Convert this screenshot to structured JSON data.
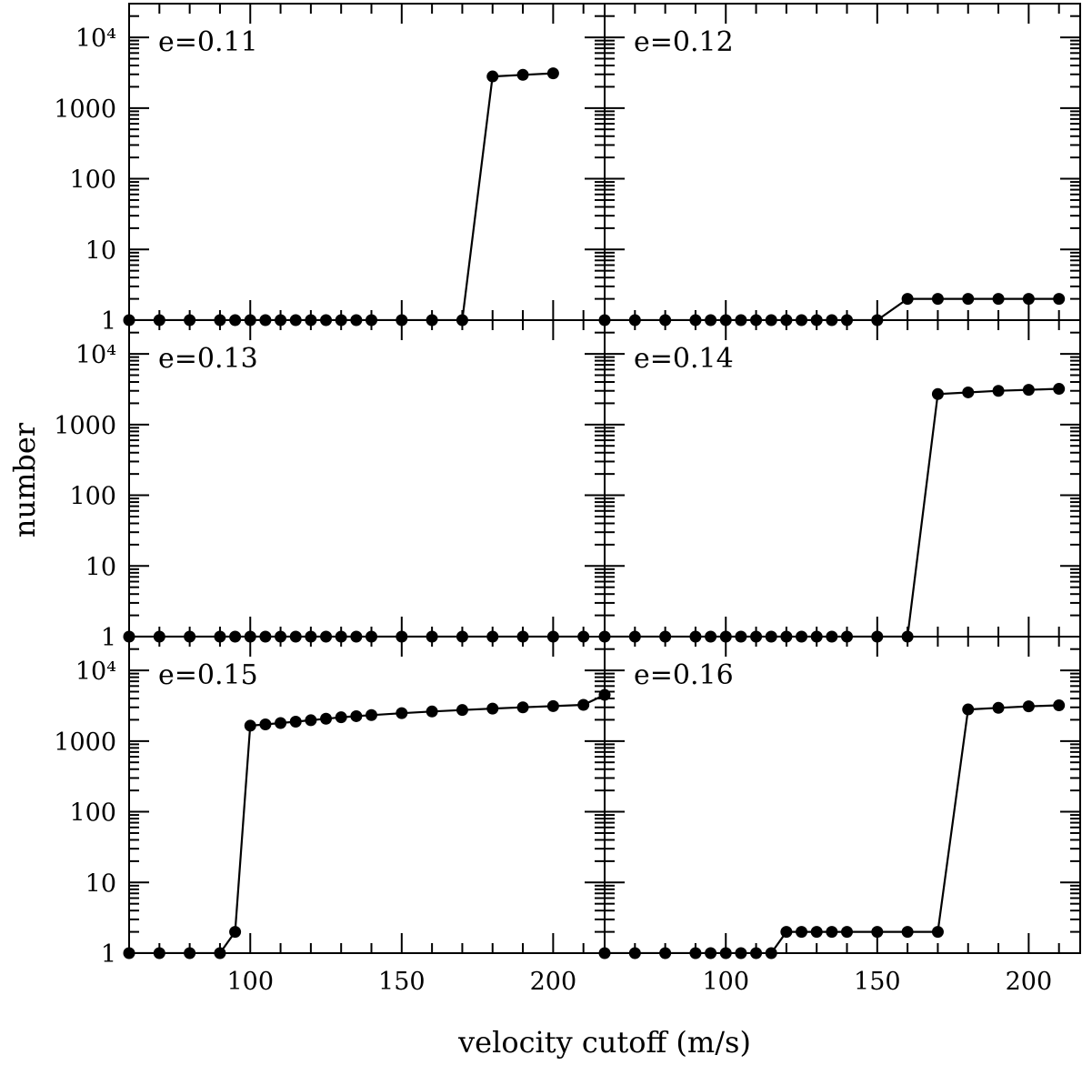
{
  "chart_data": {
    "type": "line",
    "layout": "3x2 panel grid, shared axes",
    "xlabel": "velocity cutoff (m/s)",
    "ylabel": "number",
    "xlim": [
      60,
      217
    ],
    "ylim": [
      1,
      30000
    ],
    "yscale": "log",
    "x_tick_labels": [
      "100",
      "150",
      "200"
    ],
    "x_tick_values": [
      100,
      150,
      200
    ],
    "y_tick_labels": [
      "1",
      "10",
      "100",
      "1000",
      "10⁴"
    ],
    "y_tick_values": [
      1,
      10,
      100,
      1000,
      10000
    ],
    "grid": false,
    "legend": "none",
    "marker": "filled circle",
    "line_color": "#000000",
    "panels": [
      {
        "label": "e=0.11",
        "x": [
          60,
          70,
          80,
          90,
          95,
          100,
          105,
          110,
          115,
          120,
          125,
          130,
          135,
          140,
          150,
          160,
          170,
          180,
          190,
          200
        ],
        "y": [
          1,
          1,
          1,
          1,
          1,
          1,
          1,
          1,
          1,
          1,
          1,
          1,
          1,
          1,
          1,
          1,
          1,
          2800,
          2950,
          3100
        ]
      },
      {
        "label": "e=0.12",
        "x": [
          60,
          70,
          80,
          90,
          95,
          100,
          105,
          110,
          115,
          120,
          125,
          130,
          135,
          140,
          150,
          160,
          170,
          180,
          190,
          200,
          210
        ],
        "y": [
          1,
          1,
          1,
          1,
          1,
          1,
          1,
          1,
          1,
          1,
          1,
          1,
          1,
          1,
          1,
          2,
          2,
          2,
          2,
          2,
          2
        ]
      },
      {
        "label": "e=0.13",
        "x": [
          60,
          70,
          80,
          90,
          95,
          100,
          105,
          110,
          115,
          120,
          125,
          130,
          135,
          140,
          150,
          160,
          170,
          180,
          190,
          200,
          210
        ],
        "y": [
          1,
          1,
          1,
          1,
          1,
          1,
          1,
          1,
          1,
          1,
          1,
          1,
          1,
          1,
          1,
          1,
          1,
          1,
          1,
          1,
          1
        ]
      },
      {
        "label": "e=0.14",
        "x": [
          60,
          70,
          80,
          90,
          95,
          100,
          105,
          110,
          115,
          120,
          125,
          130,
          135,
          140,
          150,
          160,
          170,
          180,
          190,
          200,
          210
        ],
        "y": [
          1,
          1,
          1,
          1,
          1,
          1,
          1,
          1,
          1,
          1,
          1,
          1,
          1,
          1,
          1,
          1,
          2700,
          2850,
          3000,
          3100,
          3200
        ]
      },
      {
        "label": "e=0.15",
        "x": [
          60,
          70,
          80,
          90,
          95,
          100,
          105,
          110,
          115,
          120,
          125,
          130,
          135,
          140,
          150,
          160,
          170,
          180,
          190,
          200,
          210,
          217
        ],
        "y": [
          1,
          1,
          1,
          1,
          2,
          1650,
          1720,
          1800,
          1880,
          1970,
          2070,
          2170,
          2250,
          2330,
          2480,
          2620,
          2750,
          2880,
          3000,
          3120,
          3250,
          4500
        ]
      },
      {
        "label": "e=0.16",
        "x": [
          60,
          70,
          80,
          90,
          95,
          100,
          105,
          110,
          115,
          120,
          125,
          130,
          135,
          140,
          150,
          160,
          170,
          180,
          190,
          200,
          210
        ],
        "y": [
          1,
          1,
          1,
          1,
          1,
          1,
          1,
          1,
          1,
          2,
          2,
          2,
          2,
          2,
          2,
          2,
          2,
          2800,
          2950,
          3100,
          3200
        ]
      }
    ]
  }
}
